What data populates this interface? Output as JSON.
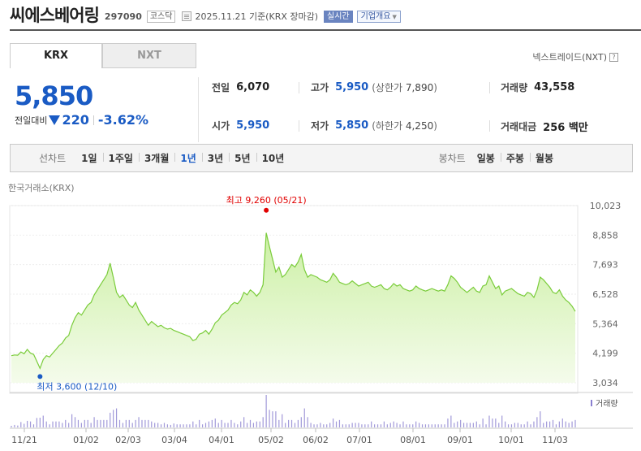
{
  "header": {
    "title": "씨에스베어링",
    "code": "297090",
    "market": "코스닥",
    "date_text": "2025.11.21  기준(KRX 장마감)",
    "realtime_label": "실시간",
    "company_button": "기업개요"
  },
  "tabs": [
    {
      "label": "KRX"
    },
    {
      "label": "NXT"
    }
  ],
  "nextrade_label": "넥스트레이드(NXT)",
  "quote": {
    "price": "5,850",
    "change_label": "전일대비",
    "change": "220",
    "change_pct": "-3.62%"
  },
  "stats": {
    "prev_label": "전일",
    "prev": "6,070",
    "high_label": "고가",
    "high": "5,950",
    "upper_label": "상한가",
    "upper": "7,890",
    "volume_label": "거래량",
    "volume": "43,558",
    "open_label": "시가",
    "open": "5,950",
    "low_label": "저가",
    "low": "5,850",
    "lower_label": "하한가",
    "lower": "4,250",
    "amount_label": "거래대금",
    "amount": "256 백만"
  },
  "periods": {
    "label": "선차트",
    "items": [
      "1일",
      "1주일",
      "3개월",
      "1년",
      "3년",
      "5년",
      "10년"
    ],
    "selected": "1년"
  },
  "candles": {
    "label": "봉차트",
    "items": [
      "일봉",
      "주봉",
      "월봉"
    ]
  },
  "exchange_label": "한국거래소(KRX)",
  "colors": {
    "accent_blue": "#1a5bc4",
    "line_green": "#7acc3a",
    "fill_green": "#c9ef9f",
    "high_red": "#e10000",
    "volume_purple": "#8a7fd0"
  },
  "chart_data": {
    "type": "area",
    "ylim": [
      3034,
      10023
    ],
    "y_ticks": [
      "10,023",
      "8,858",
      "7,693",
      "6,528",
      "5,364",
      "4,199",
      "3,034"
    ],
    "x_labels": [
      "11/21",
      "01/02",
      "02/03",
      "03/04",
      "04/01",
      "05/02",
      "06/02",
      "07/01",
      "08/01",
      "09/01",
      "10/01",
      "11/03"
    ],
    "high_annotation": {
      "text": "최고 9,260 (05/21)",
      "value": 9260,
      "date": "05/21"
    },
    "low_annotation": {
      "text": "최저 3,600 (12/10)",
      "value": 3600,
      "date": "12/10"
    },
    "volume_legend": "거래량",
    "series": [
      {
        "values": [
          4100,
          4130,
          4120,
          4250,
          4180,
          4350,
          4200,
          4150,
          3880,
          3600,
          3950,
          4100,
          4050,
          4200,
          4350,
          4500,
          4600,
          4800,
          4900,
          5300,
          5600,
          5800,
          5700,
          5900,
          6100,
          6200,
          6500,
          6700,
          6900,
          7100,
          7300,
          7750,
          7200,
          6600,
          6400,
          6500,
          6300,
          6100,
          6000,
          6200,
          5900,
          5700,
          5500,
          5300,
          5450,
          5350,
          5250,
          5300,
          5200,
          5150,
          5180,
          5100,
          5050,
          5000,
          4950,
          4900,
          4850,
          4700,
          4750,
          4950,
          5000,
          5100,
          4950,
          5150,
          5400,
          5500,
          5700,
          5800,
          5900,
          6100,
          6200,
          6150,
          6300,
          6600,
          6500,
          6700,
          6600,
          6450,
          6600,
          6900,
          8950,
          8400,
          7900,
          7400,
          7600,
          7200,
          7300,
          7500,
          7700,
          7600,
          7800,
          8100,
          7500,
          7200,
          7300,
          7250,
          7200,
          7100,
          7050,
          7000,
          7100,
          7350,
          7200,
          7000,
          6950,
          6900,
          6950,
          7050,
          6950,
          6850,
          6900,
          6950,
          7000,
          6850,
          6800,
          6850,
          6900,
          6750,
          6700,
          6800,
          6950,
          6850,
          6900,
          6750,
          6700,
          6650,
          6700,
          6850,
          6750,
          6700,
          6650,
          6700,
          6750,
          6700,
          6650,
          6700,
          6650,
          6900,
          7250,
          7150,
          7000,
          6800,
          6700,
          6600,
          6700,
          6800,
          6650,
          6600,
          6850,
          6900,
          7250,
          7000,
          6750,
          6850,
          6500,
          6650,
          6700,
          6750,
          6650,
          6550,
          6500,
          6450,
          6600,
          6550,
          6400,
          6700,
          7200,
          7100,
          6950,
          6800,
          6600,
          6550,
          6700,
          6450,
          6300,
          6200,
          6050,
          5850
        ]
      }
    ]
  }
}
